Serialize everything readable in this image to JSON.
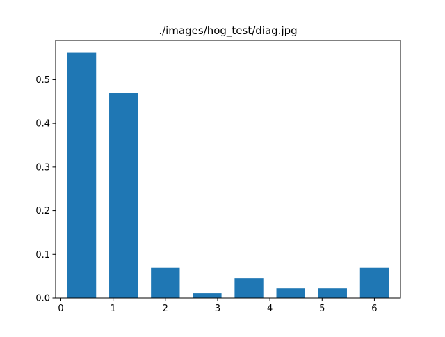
{
  "chart_data": {
    "type": "bar",
    "title": "./images/hog_test/diag.jpg",
    "xlabel": "",
    "ylabel": "",
    "x": [
      0.4,
      1.2,
      2.0,
      2.8,
      3.6,
      4.4,
      5.2,
      6.0
    ],
    "values": [
      0.562,
      0.47,
      0.069,
      0.011,
      0.046,
      0.022,
      0.022,
      0.069
    ],
    "bar_width": 0.55,
    "xlim": [
      -0.1,
      6.5
    ],
    "ylim": [
      0,
      0.59
    ],
    "xticks": [
      0,
      1,
      2,
      3,
      4,
      5,
      6
    ],
    "yticks": [
      0.0,
      0.1,
      0.2,
      0.3,
      0.4,
      0.5
    ],
    "xtick_labels": [
      "0",
      "1",
      "2",
      "3",
      "4",
      "5",
      "6"
    ],
    "ytick_labels": [
      "0.0",
      "0.1",
      "0.2",
      "0.3",
      "0.4",
      "0.5"
    ],
    "bar_color": "#1f77b4",
    "grid": false,
    "legend": "none"
  }
}
